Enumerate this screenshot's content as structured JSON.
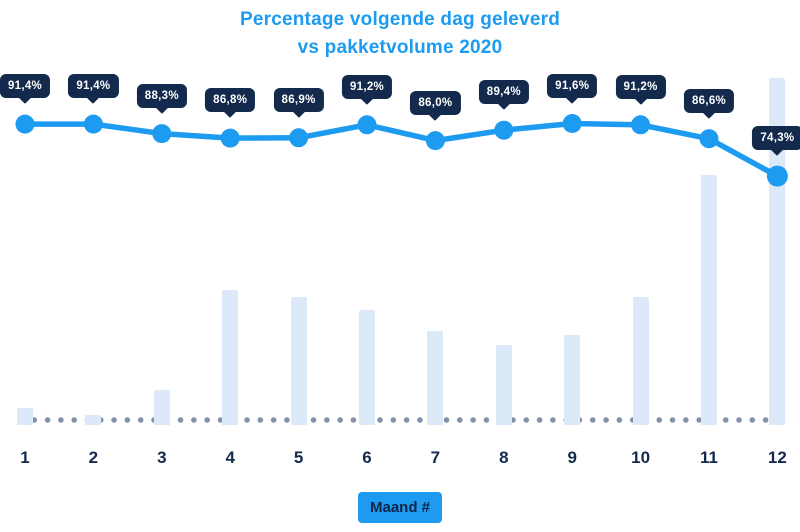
{
  "title": {
    "line1": "Percentage volgende dag geleverd",
    "line2": "vs pakketvolume 2020"
  },
  "xaxis_label": "Maand #",
  "colors": {
    "accent_blue": "#1d9bf0",
    "navy": "#132a4d",
    "bar_fill": "#dce9f8",
    "dot_gray": "#8292a8"
  },
  "chart_data": {
    "type": "line",
    "title": "Percentage volgende dag geleverd vs pakketvolume 2020",
    "xlabel": "Maand #",
    "ylabel": "",
    "categories": [
      "1",
      "2",
      "3",
      "4",
      "5",
      "6",
      "7",
      "8",
      "9",
      "10",
      "11",
      "12"
    ],
    "series": [
      {
        "name": "Percentage volgende dag geleverd",
        "type": "line",
        "values": [
          91.4,
          91.4,
          88.3,
          86.8,
          86.9,
          91.2,
          86.0,
          89.4,
          91.6,
          91.2,
          86.6,
          74.3
        ],
        "labels": [
          "91,4%",
          "91,4%",
          "88,3%",
          "86,8%",
          "86,9%",
          "91,2%",
          "86,0%",
          "89,4%",
          "91,6%",
          "91,2%",
          "86,6%",
          "74,3%"
        ]
      },
      {
        "name": "Pakketvolume 2020",
        "type": "bar",
        "values_relative_pct_of_max": [
          5,
          3,
          10,
          39,
          37,
          33,
          27,
          23,
          26,
          37,
          72,
          100
        ]
      }
    ],
    "legend": "none",
    "grid": false,
    "baseline": "dotted"
  }
}
